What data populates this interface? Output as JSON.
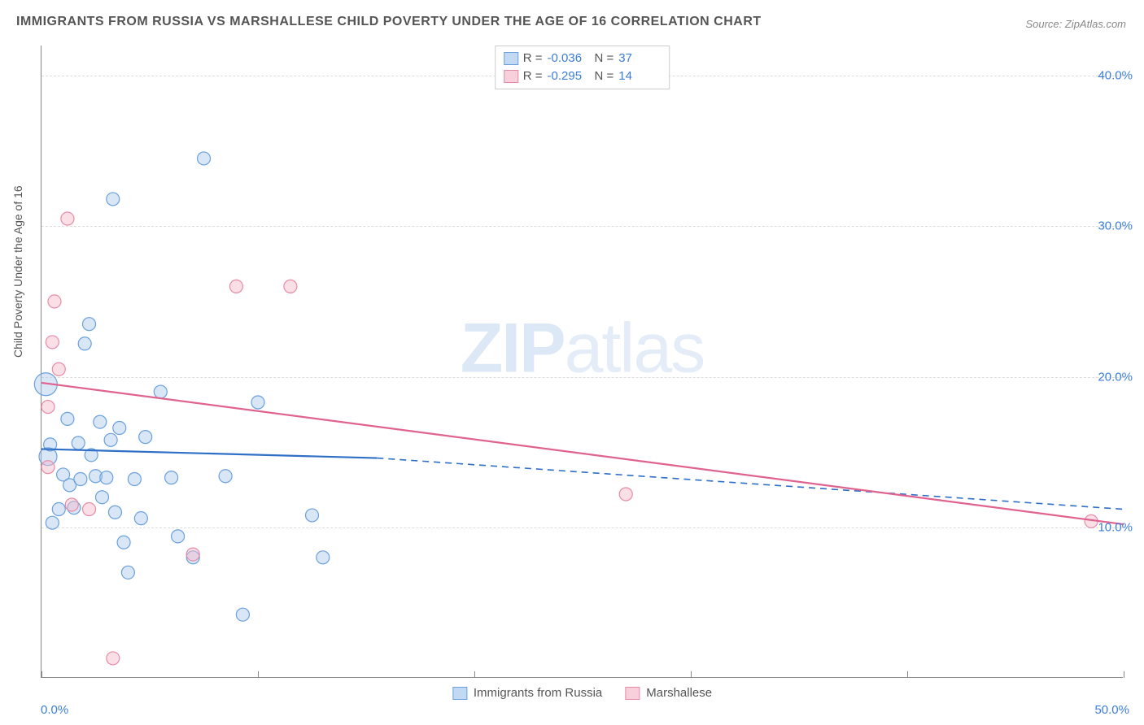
{
  "title": "IMMIGRANTS FROM RUSSIA VS MARSHALLESE CHILD POVERTY UNDER THE AGE OF 16 CORRELATION CHART",
  "source": "Source: ZipAtlas.com",
  "watermark_zip": "ZIP",
  "watermark_atlas": "atlas",
  "y_axis_label": "Child Poverty Under the Age of 16",
  "chart": {
    "type": "scatter",
    "background_color": "#ffffff",
    "grid_color": "#dddddd",
    "axis_color": "#888888",
    "font_family": "Arial",
    "title_fontsize": 16,
    "label_fontsize": 14,
    "tick_fontsize": 15,
    "tick_color": "#3b7dd8",
    "xlim": [
      0,
      50
    ],
    "ylim": [
      0,
      42
    ],
    "y_ticks": [
      10,
      20,
      30,
      40
    ],
    "y_tick_labels": [
      "10.0%",
      "20.0%",
      "30.0%",
      "40.0%"
    ],
    "x_ticks_minor": [
      0,
      10,
      20,
      30,
      40,
      50
    ],
    "x_tick_labels": [
      "0.0%",
      "50.0%"
    ],
    "marker_radius": 8,
    "marker_opacity": 0.45,
    "line_width": 2.2,
    "series": [
      {
        "name": "Immigrants from Russia",
        "color_fill": "#a8c8ec",
        "color_stroke": "#6aa0dd",
        "R": "-0.036",
        "N": "37",
        "trend_solid": {
          "x1": 0,
          "y1": 15.2,
          "x2": 15.5,
          "y2": 14.6
        },
        "trend_dash": {
          "x1": 15.5,
          "y1": 14.6,
          "x2": 50,
          "y2": 11.2
        },
        "trend_color": "#2f6fc7",
        "points": [
          {
            "x": 0.2,
            "y": 19.5,
            "r": 14
          },
          {
            "x": 0.3,
            "y": 14.7,
            "r": 11
          },
          {
            "x": 0.4,
            "y": 15.5
          },
          {
            "x": 0.5,
            "y": 10.3
          },
          {
            "x": 0.8,
            "y": 11.2
          },
          {
            "x": 1.0,
            "y": 13.5
          },
          {
            "x": 1.2,
            "y": 17.2
          },
          {
            "x": 1.3,
            "y": 12.8
          },
          {
            "x": 1.5,
            "y": 11.3
          },
          {
            "x": 1.7,
            "y": 15.6
          },
          {
            "x": 1.8,
            "y": 13.2
          },
          {
            "x": 2.0,
            "y": 22.2
          },
          {
            "x": 2.2,
            "y": 23.5
          },
          {
            "x": 2.3,
            "y": 14.8
          },
          {
            "x": 2.5,
            "y": 13.4
          },
          {
            "x": 2.7,
            "y": 17.0
          },
          {
            "x": 2.8,
            "y": 12.0
          },
          {
            "x": 3.0,
            "y": 13.3
          },
          {
            "x": 3.2,
            "y": 15.8
          },
          {
            "x": 3.3,
            "y": 31.8
          },
          {
            "x": 3.4,
            "y": 11.0
          },
          {
            "x": 3.6,
            "y": 16.6
          },
          {
            "x": 3.8,
            "y": 9.0
          },
          {
            "x": 4.0,
            "y": 7.0
          },
          {
            "x": 4.3,
            "y": 13.2
          },
          {
            "x": 4.6,
            "y": 10.6
          },
          {
            "x": 4.8,
            "y": 16.0
          },
          {
            "x": 5.5,
            "y": 19.0
          },
          {
            "x": 6.0,
            "y": 13.3
          },
          {
            "x": 6.3,
            "y": 9.4
          },
          {
            "x": 7.0,
            "y": 8.0
          },
          {
            "x": 7.5,
            "y": 34.5
          },
          {
            "x": 8.5,
            "y": 13.4
          },
          {
            "x": 9.3,
            "y": 4.2
          },
          {
            "x": 10.0,
            "y": 18.3
          },
          {
            "x": 12.5,
            "y": 10.8
          },
          {
            "x": 13.0,
            "y": 8.0
          }
        ]
      },
      {
        "name": "Marshallese",
        "color_fill": "#f5b8c9",
        "color_stroke": "#e88aa5",
        "R": "-0.295",
        "N": "14",
        "trend_solid": {
          "x1": 0,
          "y1": 19.6,
          "x2": 50,
          "y2": 10.2
        },
        "trend_dash": null,
        "trend_color": "#e0638f",
        "points": [
          {
            "x": 0.3,
            "y": 18.0
          },
          {
            "x": 0.3,
            "y": 14.0
          },
          {
            "x": 0.5,
            "y": 22.3
          },
          {
            "x": 0.6,
            "y": 25.0
          },
          {
            "x": 0.8,
            "y": 20.5
          },
          {
            "x": 1.2,
            "y": 30.5
          },
          {
            "x": 1.4,
            "y": 11.5
          },
          {
            "x": 2.2,
            "y": 11.2
          },
          {
            "x": 3.3,
            "y": 1.3
          },
          {
            "x": 7.0,
            "y": 8.2
          },
          {
            "x": 9.0,
            "y": 26.0
          },
          {
            "x": 11.5,
            "y": 26.0
          },
          {
            "x": 27.0,
            "y": 12.2
          },
          {
            "x": 48.5,
            "y": 10.4
          }
        ]
      }
    ],
    "legend_bottom": [
      {
        "swatch": "blue",
        "label": "Immigrants from Russia"
      },
      {
        "swatch": "pink",
        "label": "Marshallese"
      }
    ]
  }
}
